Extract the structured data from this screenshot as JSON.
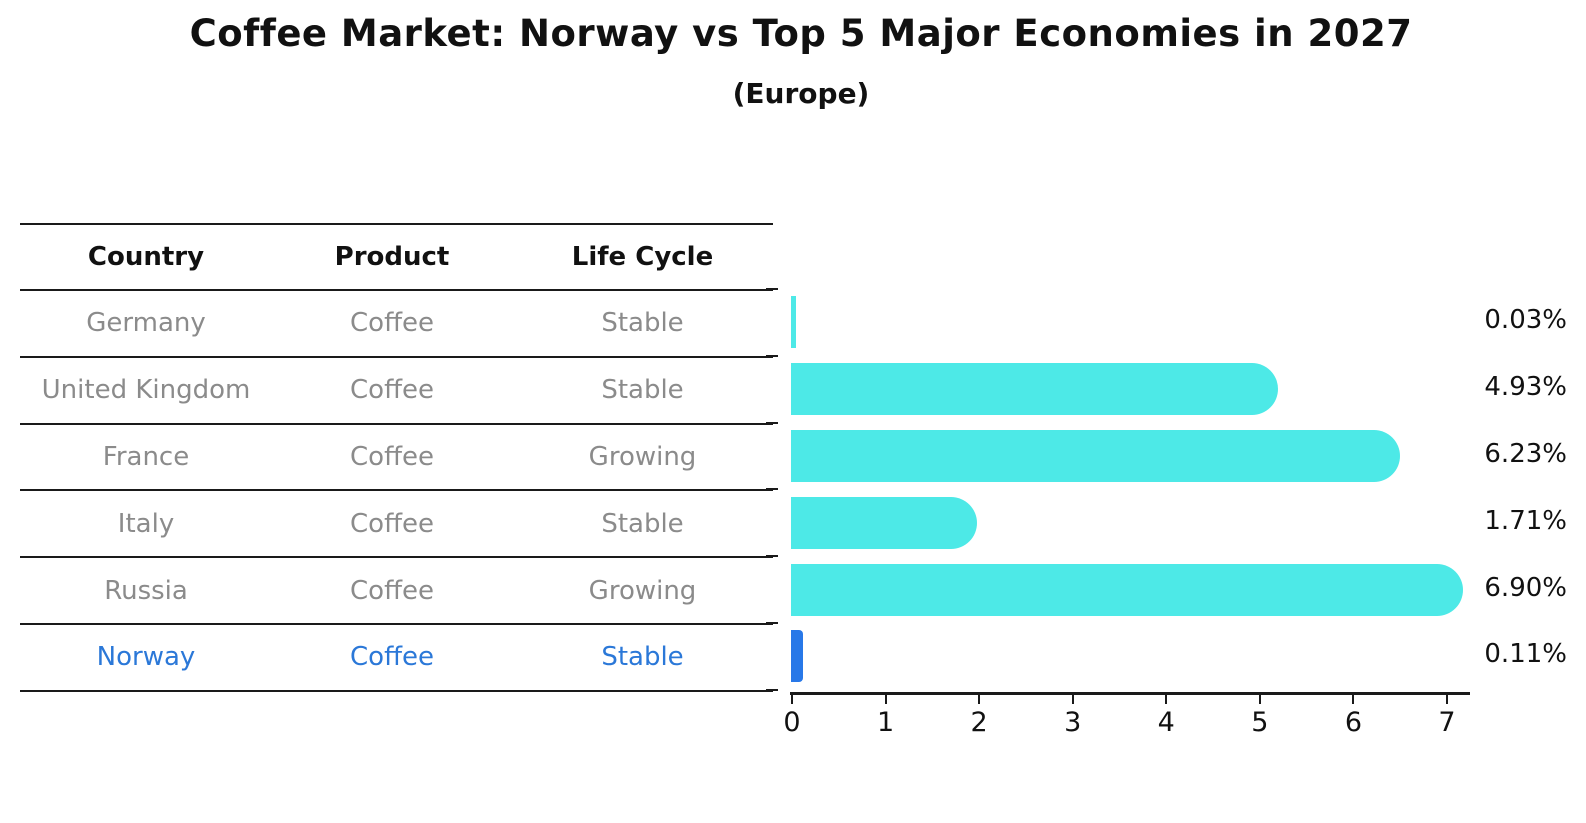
{
  "title": "Coffee Market: Norway vs Top 5 Major Economies in 2027",
  "subtitle": "(Europe)",
  "table": {
    "headers": {
      "country": "Country",
      "product": "Product",
      "life_cycle": "Life Cycle"
    },
    "rows": [
      {
        "country": "Germany",
        "product": "Coffee",
        "life_cycle": "Stable",
        "highlighted": false
      },
      {
        "country": "United Kingdom",
        "product": "Coffee",
        "life_cycle": "Stable",
        "highlighted": false
      },
      {
        "country": "France",
        "product": "Coffee",
        "life_cycle": "Growing",
        "highlighted": false
      },
      {
        "country": "Italy",
        "product": "Coffee",
        "life_cycle": "Stable",
        "highlighted": false
      },
      {
        "country": "Russia",
        "product": "Coffee",
        "life_cycle": "Growing",
        "highlighted": false
      },
      {
        "country": "Norway",
        "product": "Coffee",
        "life_cycle": "Stable",
        "highlighted": true
      }
    ]
  },
  "chart_data": {
    "type": "bar",
    "orientation": "horizontal",
    "title": "Coffee Market: Norway vs Top 5 Major Economies in 2027",
    "subtitle": "(Europe)",
    "categories": [
      "Germany",
      "United Kingdom",
      "France",
      "Italy",
      "Russia",
      "Norway"
    ],
    "values": [
      0.03,
      4.93,
      6.23,
      1.71,
      6.9,
      0.11
    ],
    "value_labels": [
      "0.03%",
      "4.93%",
      "6.23%",
      "1.71%",
      "6.90%",
      "0.11%"
    ],
    "unit": "%",
    "xlabel": "",
    "ylabel": "",
    "xlim": [
      0,
      7
    ],
    "x_ticks": [
      "0",
      "1",
      "2",
      "3",
      "4",
      "5",
      "6",
      "7"
    ],
    "grid": false,
    "legend": false,
    "bar_color": "#4de9e7",
    "highlight_bar_color": "#2878e8",
    "highlight_index": 5
  },
  "colors": {
    "background": "#ffffff",
    "text": "#111111",
    "table_text": "#8b8b8b",
    "table_highlight_text": "#2b78d8",
    "line": "#1a1a1a"
  }
}
